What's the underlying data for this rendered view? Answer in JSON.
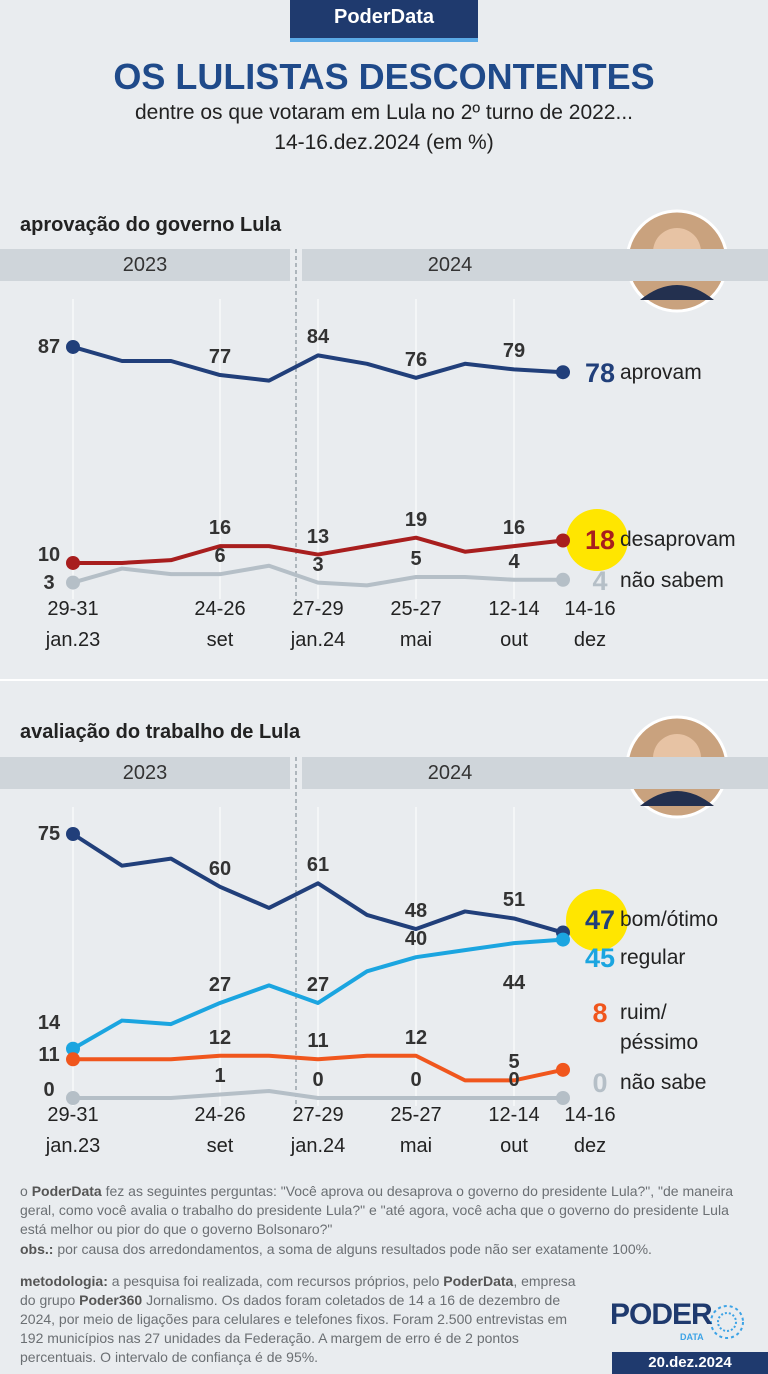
{
  "header": {
    "brand": "PoderData",
    "title": "OS LULISTAS DESCONTENTES",
    "subtitle": "dentre os que votaram em Lula no 2º turno de 2022...",
    "date_range": "14-16.dez.2024 (em %)"
  },
  "chart_data": [
    {
      "type": "line",
      "title": "aprovação do governo Lula",
      "periods": [
        "2023",
        "2024"
      ],
      "categories": [
        "29-31 jan.23",
        null,
        null,
        "24-26 set",
        null,
        "27-29 jan.24",
        null,
        "25-27 mai",
        null,
        "12-14 out",
        "14-16 dez"
      ],
      "ylim": [
        0,
        100
      ],
      "series": [
        {
          "name": "aprovam",
          "color": "#213f7a",
          "values": [
            87,
            82,
            82,
            77,
            75,
            84,
            81,
            76,
            81,
            79,
            78
          ],
          "value_labels": [
            "87",
            null,
            null,
            "77",
            null,
            "84",
            null,
            "76",
            null,
            "79",
            null
          ]
        },
        {
          "name": "desaprovam",
          "color": "#a81e1e",
          "highlight": true,
          "values": [
            10,
            10,
            11,
            16,
            16,
            13,
            16,
            19,
            14,
            16,
            18
          ],
          "value_labels": [
            "10",
            null,
            null,
            "16",
            null,
            "13",
            null,
            "19",
            null,
            "16",
            null
          ]
        },
        {
          "name": "não sabem",
          "color": "#b5bfc7",
          "values": [
            3,
            8,
            6,
            6,
            9,
            3,
            2,
            5,
            5,
            4,
            4
          ],
          "value_labels": [
            "3",
            null,
            null,
            "6",
            null,
            "3",
            null,
            "5",
            null,
            "4",
            null
          ]
        }
      ]
    },
    {
      "type": "line",
      "title": "avaliação do trabalho de Lula",
      "periods": [
        "2023",
        "2024"
      ],
      "categories": [
        "29-31 jan.23",
        null,
        null,
        "24-26 set",
        null,
        "27-29 jan.24",
        null,
        "25-27 mai",
        null,
        "12-14 out",
        "14-16 dez"
      ],
      "ylim": [
        0,
        100
      ],
      "series": [
        {
          "name": "bom/ótimo",
          "color": "#213f7a",
          "highlight": true,
          "values": [
            75,
            66,
            68,
            60,
            54,
            61,
            52,
            48,
            53,
            51,
            47
          ],
          "value_labels": [
            "75",
            null,
            null,
            "60",
            null,
            "61",
            null,
            "48",
            null,
            "51",
            null
          ]
        },
        {
          "name": "regular",
          "color": "#1ba5e0",
          "values": [
            14,
            22,
            21,
            27,
            32,
            27,
            36,
            40,
            42,
            44,
            45
          ],
          "value_labels": [
            "14",
            null,
            null,
            "27",
            null,
            "27",
            null,
            "40",
            null,
            "44",
            null
          ]
        },
        {
          "name": "ruim/ péssimo",
          "color": "#f0561d",
          "values": [
            11,
            11,
            11,
            12,
            12,
            11,
            12,
            12,
            5,
            5,
            8
          ],
          "value_labels": [
            "11",
            null,
            null,
            "12",
            null,
            "11",
            null,
            "12",
            null,
            "5",
            null
          ]
        },
        {
          "name": "não sabe",
          "color": "#b5bfc7",
          "values": [
            0,
            0,
            0,
            1,
            2,
            0,
            0,
            0,
            0,
            0,
            0
          ],
          "value_labels": [
            "0",
            null,
            null,
            "1",
            null,
            "0",
            null,
            "0",
            null,
            "0",
            null
          ]
        }
      ]
    }
  ],
  "notes": {
    "questions": [
      "o ",
      "PoderData",
      " fez as seguintes perguntas: \"Você aprova ou desaprova o governo do presidente Lula?\", \"de maneira geral, como você avalia o trabalho do presidente Lula?\" e \"até agora, você acha que o governo do presidente Lula está melhor ou pior do que o governo Bolsonaro?\""
    ],
    "obs": [
      "obs.:",
      " por causa dos arredondamentos, a soma de alguns resultados pode não ser exatamente 100%."
    ],
    "methodology": [
      "metodologia:",
      " a pesquisa foi realizada, com recursos próprios, pelo ",
      "PoderData",
      ", empresa do grupo ",
      "Poder360",
      " Jornalismo. Os dados foram coletados de 14 a 16 de dezembro de 2024, por meio de ligações para celulares e telefones fixos. Foram 2.500 entrevistas em 192 municípios nas 27 unidades da Federação. A margem de erro é de 2 pontos percentuais. O intervalo de confiança é de 95%."
    ]
  },
  "footer": {
    "logo": "PODER",
    "logo_sub": "DATA",
    "date": "20.dez.2024"
  }
}
